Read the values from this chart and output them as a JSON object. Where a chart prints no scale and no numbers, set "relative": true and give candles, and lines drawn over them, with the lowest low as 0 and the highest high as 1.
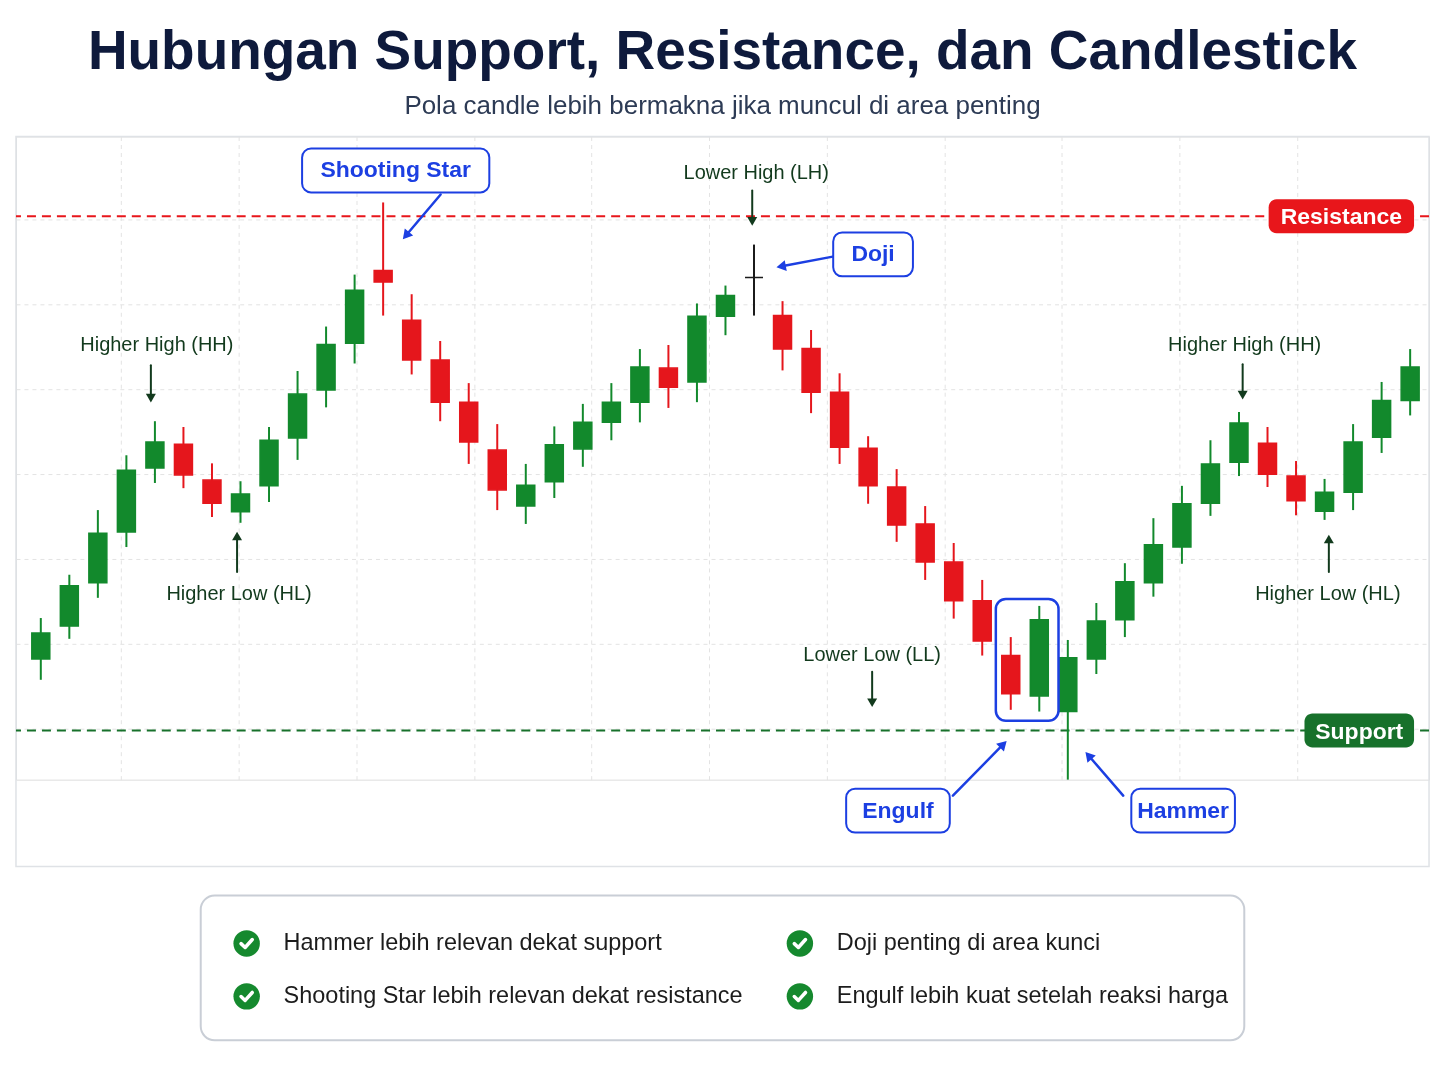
{
  "chart_data": {
    "type": "candlestick",
    "title": "Hubungan Support, Resistance, dan Candlestick",
    "subtitle": "Pola candle lebih bermakna jika muncul di area penting",
    "relative": true,
    "categories": [
      null,
      null,
      null,
      null,
      null,
      null,
      null,
      null,
      null,
      null,
      null,
      null,
      null,
      null,
      null,
      null,
      null,
      null,
      null,
      null,
      null,
      null,
      null,
      null,
      null,
      null,
      null,
      null,
      null,
      null,
      null,
      null,
      null,
      null,
      null,
      null,
      null,
      null,
      null,
      null,
      null,
      null,
      null,
      null,
      null,
      null,
      null,
      null,
      null
    ],
    "ohlc": [
      [
        0.209,
        0.28,
        0.173,
        0.254
      ],
      [
        0.266,
        0.355,
        0.244,
        0.336
      ],
      [
        0.341,
        0.467,
        0.315,
        0.427
      ],
      [
        0.429,
        0.562,
        0.403,
        0.536
      ],
      [
        0.54,
        0.621,
        0.514,
        0.585
      ],
      [
        0.581,
        0.611,
        0.505,
        0.528
      ],
      [
        0.519,
        0.548,
        0.455,
        0.479
      ],
      [
        0.464,
        0.517,
        0.445,
        0.495
      ],
      [
        0.509,
        0.611,
        0.481,
        0.588
      ],
      [
        0.592,
        0.708,
        0.554,
        0.668
      ],
      [
        0.675,
        0.785,
        0.645,
        0.754
      ],
      [
        0.756,
        0.875,
        0.721,
        0.848
      ],
      [
        0.882,
        1.0,
        0.804,
        0.862
      ],
      [
        0.796,
        0.841,
        0.702,
        0.727
      ],
      [
        0.727,
        0.76,
        0.621,
        0.654
      ],
      [
        0.654,
        0.687,
        0.547,
        0.585
      ],
      [
        0.571,
        0.616,
        0.467,
        0.502
      ],
      [
        0.474,
        0.547,
        0.443,
        0.51
      ],
      [
        0.516,
        0.612,
        0.488,
        0.58
      ],
      [
        0.573,
        0.651,
        0.542,
        0.619
      ],
      [
        0.619,
        0.687,
        0.588,
        0.654
      ],
      [
        0.654,
        0.746,
        0.619,
        0.715
      ],
      [
        0.713,
        0.753,
        0.644,
        0.68
      ],
      [
        0.689,
        0.825,
        0.654,
        0.803
      ],
      [
        0.803,
        0.856,
        0.77,
        0.839
      ],
      [
        0.87,
        0.927,
        0.804,
        0.87
      ],
      [
        0.804,
        0.829,
        0.709,
        0.746
      ],
      [
        0.747,
        0.779,
        0.635,
        0.671
      ],
      [
        0.671,
        0.704,
        0.547,
        0.576
      ],
      [
        0.574,
        0.595,
        0.478,
        0.509
      ],
      [
        0.507,
        0.538,
        0.412,
        0.441
      ],
      [
        0.443,
        0.474,
        0.346,
        0.377
      ],
      [
        0.377,
        0.41,
        0.279,
        0.31
      ],
      [
        0.31,
        0.346,
        0.215,
        0.24
      ],
      [
        0.215,
        0.247,
        0.121,
        0.149
      ],
      [
        0.145,
        0.301,
        0.118,
        0.277
      ],
      [
        0.118,
        0.242,
        0.0,
        0.211
      ],
      [
        0.209,
        0.306,
        0.183,
        0.275
      ],
      [
        0.277,
        0.375,
        0.247,
        0.343
      ],
      [
        0.341,
        0.453,
        0.317,
        0.407
      ],
      [
        0.403,
        0.509,
        0.374,
        0.478
      ],
      [
        0.479,
        0.588,
        0.457,
        0.547
      ],
      [
        0.55,
        0.637,
        0.526,
        0.618
      ],
      [
        0.583,
        0.611,
        0.507,
        0.529
      ],
      [
        0.526,
        0.552,
        0.458,
        0.483
      ],
      [
        0.465,
        0.521,
        0.45,
        0.498
      ],
      [
        0.498,
        0.616,
        0.467,
        0.585
      ],
      [
        0.593,
        0.689,
        0.566,
        0.657
      ],
      [
        0.657,
        0.746,
        0.631,
        0.715
      ]
    ],
    "colors": [
      "#12892c",
      "#12892c",
      "#12892c",
      "#12892c",
      "#12892c",
      "#e5161c",
      "#e5161c",
      "#12892c",
      "#12892c",
      "#12892c",
      "#12892c",
      "#12892c",
      "#e5161c",
      "#e5161c",
      "#e5161c",
      "#e5161c",
      "#e5161c",
      "#12892c",
      "#12892c",
      "#12892c",
      "#12892c",
      "#12892c",
      "#e5161c",
      "#12892c",
      "#12892c",
      "#1b1b1b",
      "#e5161c",
      "#e5161c",
      "#e5161c",
      "#e5161c",
      "#e5161c",
      "#e5161c",
      "#e5161c",
      "#e5161c",
      "#e5161c",
      "#12892c",
      "#12892c",
      "#12892c",
      "#12892c",
      "#12892c",
      "#12892c",
      "#12892c",
      "#12892c",
      "#e5161c",
      "#e5161c",
      "#12892c",
      "#12892c",
      "#12892c",
      "#12892c"
    ],
    "ref_lines": [
      {
        "axis": "y",
        "value": 0.976,
        "label": "Resistance",
        "color": "#e8161b",
        "line_style": "dashed"
      },
      {
        "axis": "y",
        "value": 0.085,
        "label": "Support",
        "color": "#17712b",
        "line_style": "dashed"
      }
    ],
    "grid": true,
    "tick_labels": false,
    "annotations": [
      "Shooting Star",
      "Doji",
      "Engulf",
      "Hammer",
      "Higher High (HH)",
      "Higher Low (HL)",
      "Lower High (LH)",
      "Lower Low (LL)",
      "Higher High (HH)",
      "Higher Low (HL)",
      "Hammer lebih relevan dekat support",
      "Doji penting di area kunci",
      "Shooting Star lebih relevan dekat resistance",
      "Engulf lebih kuat setelah reaksi harga"
    ]
  }
}
